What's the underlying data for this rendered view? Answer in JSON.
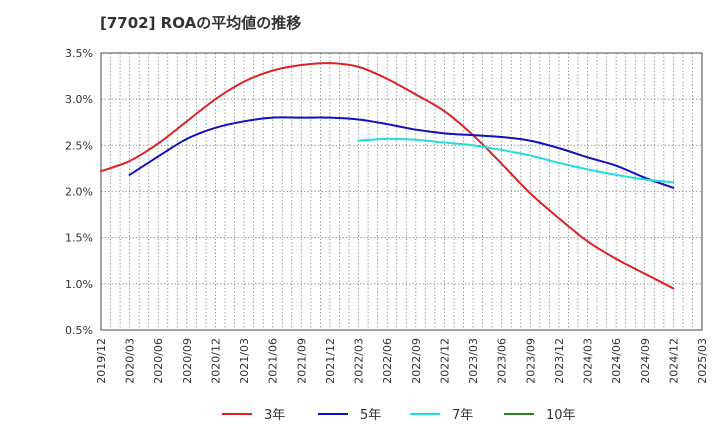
{
  "title": "[7702]  ROAの平均値の推移",
  "chart_data": {
    "type": "line",
    "title": "[7702]  ROAの平均値の推移",
    "xlabel": "",
    "ylabel": "",
    "ylim": [
      0.5,
      3.5
    ],
    "y_ticks": [
      "0.5%",
      "1.0%",
      "1.5%",
      "2.0%",
      "2.5%",
      "3.0%",
      "3.5%"
    ],
    "y_tick_values": [
      0.5,
      1.0,
      1.5,
      2.0,
      2.5,
      3.0,
      3.5
    ],
    "x_ticks": [
      "2019/12",
      "2020/03",
      "2020/06",
      "2020/09",
      "2020/12",
      "2021/03",
      "2021/06",
      "2021/09",
      "2021/12",
      "2022/03",
      "2022/06",
      "2022/09",
      "2022/12",
      "2023/03",
      "2023/06",
      "2023/09",
      "2023/12",
      "2024/03",
      "2024/06",
      "2024/09",
      "2024/12",
      "2025/03"
    ],
    "grid": true,
    "legend_position": "bottom",
    "series": [
      {
        "name": "3年",
        "color": "#dd2222",
        "x": [
          "2019/12",
          "2020/03",
          "2020/06",
          "2020/09",
          "2020/12",
          "2021/03",
          "2021/06",
          "2021/09",
          "2021/12",
          "2022/03",
          "2022/06",
          "2022/09",
          "2022/12",
          "2023/03",
          "2023/06",
          "2023/09",
          "2023/12",
          "2024/03",
          "2024/06",
          "2024/09",
          "2024/12"
        ],
        "values": [
          2.22,
          2.33,
          2.52,
          2.76,
          3.0,
          3.19,
          3.31,
          3.37,
          3.39,
          3.35,
          3.22,
          3.05,
          2.87,
          2.61,
          2.3,
          1.98,
          1.71,
          1.46,
          1.27,
          1.11,
          0.95
        ]
      },
      {
        "name": "5年",
        "color": "#1111bb",
        "x": [
          "2020/03",
          "2020/06",
          "2020/09",
          "2020/12",
          "2021/03",
          "2021/06",
          "2021/09",
          "2021/12",
          "2022/03",
          "2022/06",
          "2022/09",
          "2022/12",
          "2023/03",
          "2023/06",
          "2023/09",
          "2023/12",
          "2024/03",
          "2024/06",
          "2024/09",
          "2024/12"
        ],
        "values": [
          2.18,
          2.38,
          2.57,
          2.69,
          2.76,
          2.8,
          2.8,
          2.8,
          2.78,
          2.73,
          2.67,
          2.63,
          2.61,
          2.59,
          2.55,
          2.47,
          2.37,
          2.28,
          2.15,
          2.04
        ]
      },
      {
        "name": "7年",
        "color": "#22dddd",
        "x": [
          "2022/03",
          "2022/06",
          "2022/09",
          "2022/12",
          "2023/03",
          "2023/06",
          "2023/09",
          "2023/12",
          "2024/03",
          "2024/06",
          "2024/09",
          "2024/12"
        ],
        "values": [
          2.55,
          2.57,
          2.56,
          2.53,
          2.5,
          2.45,
          2.39,
          2.31,
          2.24,
          2.18,
          2.13,
          2.1
        ]
      },
      {
        "name": "10年",
        "color": "#228822",
        "x": [],
        "values": []
      }
    ]
  }
}
